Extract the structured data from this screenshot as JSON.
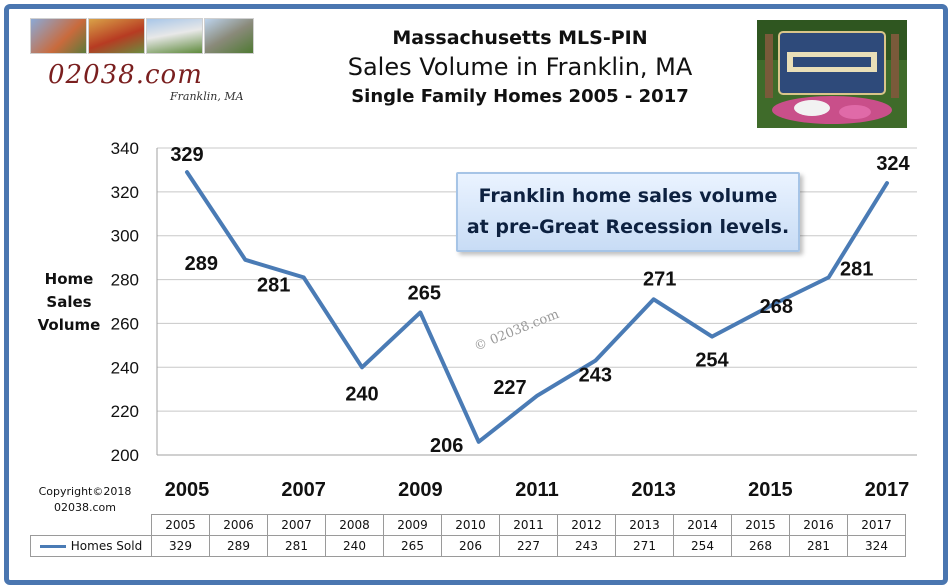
{
  "logo": {
    "main": "02038.com",
    "sub": "Franklin, MA"
  },
  "titles": {
    "line1": "Massachusetts MLS-PIN",
    "line2": "Sales Volume in Franklin, MA",
    "line3": "Single Family Homes 2005 - 2017"
  },
  "callout": {
    "line1": "Franklin home sales volume",
    "line2": "at pre-Great Recession levels."
  },
  "ylabel": {
    "l1": "Home",
    "l2": "Sales",
    "l3": "Volume"
  },
  "copyright": {
    "l1": "Copyright©2018",
    "l2": "02038.com"
  },
  "watermark": "© 02038.com",
  "colors": {
    "frame": "#4a76b0",
    "line": "#4a7bb5",
    "grid": "#c8c8c8"
  },
  "chart_data": {
    "type": "line",
    "title": "Sales Volume in Franklin, MA",
    "subtitle": "Single Family Homes 2005 - 2017",
    "ylabel": "Home Sales Volume",
    "xlabel": "",
    "x": [
      "2005",
      "2006",
      "2007",
      "2008",
      "2009",
      "2010",
      "2011",
      "2012",
      "2013",
      "2014",
      "2015",
      "2016",
      "2017"
    ],
    "x_tick_labels": [
      "2005",
      "2007",
      "2009",
      "2011",
      "2013",
      "2015",
      "2017"
    ],
    "y_ticks": [
      200,
      220,
      240,
      260,
      280,
      300,
      320,
      340
    ],
    "ylim": [
      200,
      340
    ],
    "grid": true,
    "series": [
      {
        "name": "Homes Sold",
        "values": [
          329,
          289,
          281,
          240,
          265,
          206,
          227,
          243,
          271,
          254,
          268,
          281,
          324
        ]
      }
    ]
  },
  "table": {
    "series_label": "Homes Sold"
  }
}
